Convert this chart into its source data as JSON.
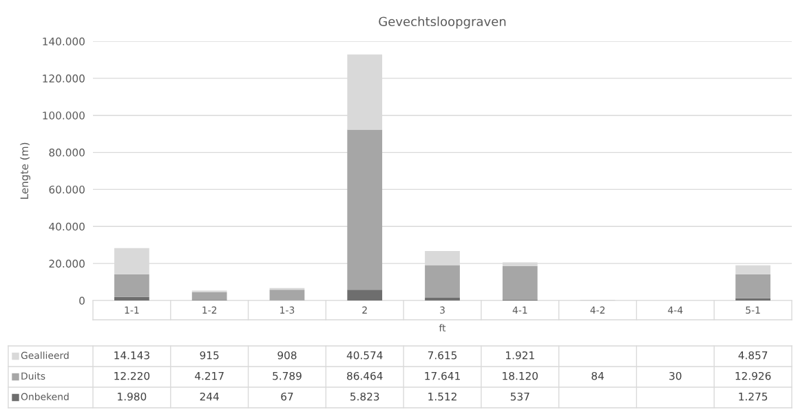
{
  "chart_data": {
    "type": "bar",
    "title": "Gevechtsloopgraven",
    "xlabel": "ft",
    "ylabel": "Lengte (m)",
    "categories": [
      "1-1",
      "1-2",
      "1-3",
      "2",
      "3",
      "4-1",
      "4-2",
      "4-4",
      "5-1"
    ],
    "stacked": true,
    "series": [
      {
        "name": "Onbekend",
        "color": "#6e6e6e",
        "values": [
          1980,
          244,
          67,
          5823,
          1512,
          537,
          null,
          null,
          1275
        ],
        "value_labels": [
          "1.980",
          "244",
          "67",
          "5.823",
          "1.512",
          "537",
          null,
          null,
          "1.275"
        ]
      },
      {
        "name": "Duits",
        "color": "#a6a6a6",
        "values": [
          12220,
          4217,
          5789,
          86464,
          17641,
          18120,
          84,
          30,
          12926
        ],
        "value_labels": [
          "12.220",
          "4.217",
          "5.789",
          "86.464",
          "17.641",
          "18.120",
          "84",
          "30",
          "12.926"
        ]
      },
      {
        "name": "Geallieerd",
        "color": "#d9d9d9",
        "values": [
          14143,
          915,
          908,
          40574,
          7615,
          1921,
          null,
          null,
          4857
        ],
        "value_labels": [
          "14.143",
          "915",
          "908",
          "40.574",
          "7.615",
          "1.921",
          null,
          null,
          "4.857"
        ]
      }
    ],
    "ylim": [
      0,
      140000
    ],
    "yticks": [
      0,
      {
        "value": 20000,
        "label": "20.000"
      },
      {
        "value": 40000,
        "label": "40.000"
      },
      {
        "value": 60000,
        "label": "60.000"
      },
      {
        "value": 80000,
        "label": "80.000"
      },
      {
        "value": 100000,
        "label": "100.000"
      },
      {
        "value": 120000,
        "label": "120.000"
      },
      {
        "value": 140000,
        "label": "140.000"
      }
    ],
    "grid": "y",
    "legend": "bottom"
  }
}
